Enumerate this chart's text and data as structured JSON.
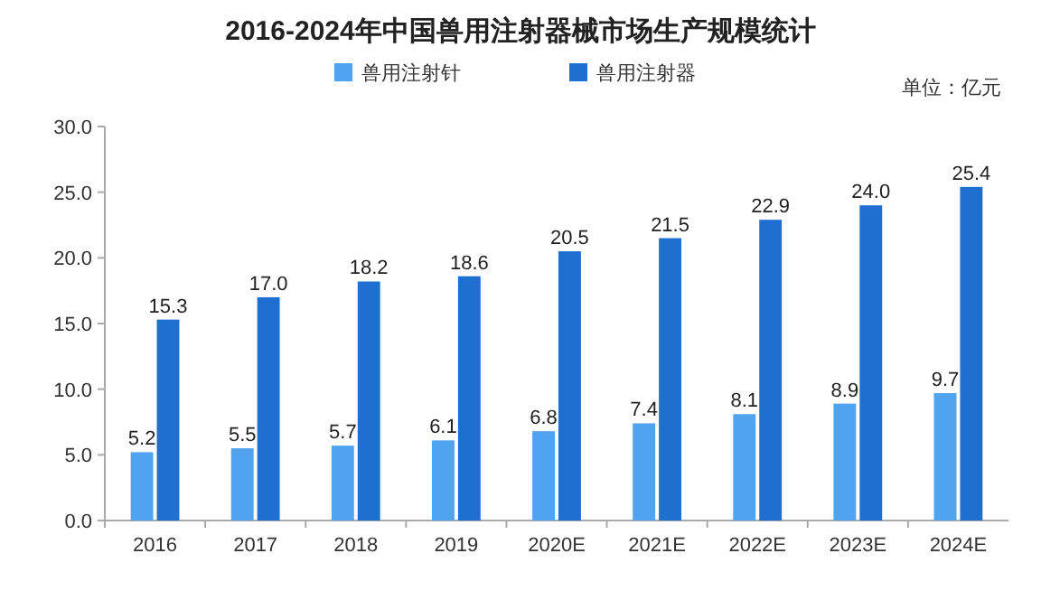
{
  "chart_data": {
    "type": "bar",
    "title": "2016-2024年中国兽用注射器械市场生产规模统计",
    "categories": [
      "2016",
      "2017",
      "2018",
      "2019",
      "2020E",
      "2021E",
      "2022E",
      "2023E",
      "2024E"
    ],
    "series": [
      {
        "name": "兽用注射针",
        "color": "#4fa3ef",
        "values": [
          5.2,
          5.5,
          5.7,
          6.1,
          6.8,
          7.4,
          8.1,
          8.9,
          9.7
        ],
        "value_labels": [
          "5.2",
          "5.5",
          "5.7",
          "6.1",
          "6.8",
          "7.4",
          "8.1",
          "8.9",
          "9.7"
        ]
      },
      {
        "name": "兽用注射器",
        "color": "#1f6fd1",
        "values": [
          15.3,
          17.0,
          18.2,
          18.6,
          20.5,
          21.5,
          22.9,
          24.0,
          25.4
        ],
        "value_labels": [
          "15.3",
          "17.0",
          "18.2",
          "18.6",
          "20.5",
          "21.5",
          "22.9",
          "24.0",
          "25.4"
        ]
      }
    ],
    "ylim": [
      0,
      30
    ],
    "yticks": [
      {
        "value": 0,
        "label": "0.0"
      },
      {
        "value": 5,
        "label": "5.0"
      },
      {
        "value": 10,
        "label": "10.0"
      },
      {
        "value": 15,
        "label": "15.0"
      },
      {
        "value": 20,
        "label": "20.0"
      },
      {
        "value": 25,
        "label": "25.0"
      },
      {
        "value": 30,
        "label": "30.0"
      }
    ],
    "legend": "top",
    "annotations": [
      "单位：亿元"
    ]
  }
}
